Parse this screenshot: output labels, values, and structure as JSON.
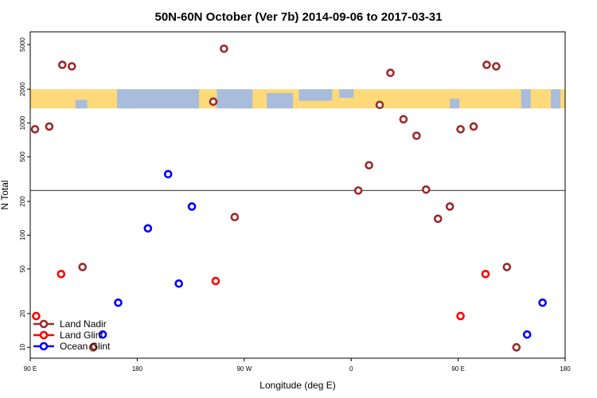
{
  "chart_data": {
    "type": "scatter",
    "title": "50N-60N October (Ver 7b)   2014-09-06 to 2017-03-31",
    "xlabel": "Longitude (deg E)",
    "ylabel": "N Total",
    "xlim": [
      90,
      540
    ],
    "ylim_log": [
      8,
      6500
    ],
    "scale_y": "log",
    "x_ticks": [
      {
        "value": 90,
        "label": "90 E"
      },
      {
        "value": 180,
        "label": "180"
      },
      {
        "value": 270,
        "label": "90 W"
      },
      {
        "value": 360,
        "label": "0"
      },
      {
        "value": 450,
        "label": "90 E"
      },
      {
        "value": 540,
        "label": "180"
      }
    ],
    "y_ticks": [
      {
        "value": 10,
        "label": "10"
      },
      {
        "value": 20,
        "label": "20"
      },
      {
        "value": 50,
        "label": "50"
      },
      {
        "value": 100,
        "label": "100"
      },
      {
        "value": 200,
        "label": "200"
      },
      {
        "value": 500,
        "label": "500"
      },
      {
        "value": 1000,
        "label": "1000"
      },
      {
        "value": 2000,
        "label": "2000"
      },
      {
        "value": 5000,
        "label": "5000"
      }
    ],
    "reference_line_y": 250,
    "map_band": {
      "y_low": 1350,
      "y_high": 2000,
      "ocean_color": "#a8bcdc",
      "land_color": "#fdd97a"
    },
    "legend_position": "bottom-left",
    "series": [
      {
        "name": "Land Nadir",
        "color": "#9b2b2b",
        "points": [
          [
            94,
            880
          ],
          [
            106,
            930
          ],
          [
            117,
            3300
          ],
          [
            125,
            3200
          ],
          [
            134,
            52
          ],
          [
            143,
            10
          ],
          [
            244,
            1550
          ],
          [
            253,
            4600
          ],
          [
            262,
            145
          ],
          [
            366,
            250
          ],
          [
            375,
            420
          ],
          [
            384,
            1450
          ],
          [
            393,
            2800
          ],
          [
            404,
            1080
          ],
          [
            415,
            770
          ],
          [
            423,
            255
          ],
          [
            433,
            140
          ],
          [
            443,
            180
          ],
          [
            452,
            880
          ],
          [
            463,
            930
          ],
          [
            474,
            3300
          ],
          [
            482,
            3200
          ],
          [
            491,
            52
          ],
          [
            499,
            10
          ]
        ]
      },
      {
        "name": "Land Glint",
        "color": "#ff0000",
        "points": [
          [
            95,
            19
          ],
          [
            116,
            45
          ],
          [
            246,
            39
          ],
          [
            452,
            19
          ],
          [
            473,
            45
          ]
        ]
      },
      {
        "name": "Ocean Glint",
        "color": "#0000ff",
        "points": [
          [
            151,
            13
          ],
          [
            164,
            25
          ],
          [
            189,
            115
          ],
          [
            206,
            350
          ],
          [
            215,
            37
          ],
          [
            226,
            180
          ],
          [
            508,
            13
          ],
          [
            521,
            25
          ]
        ]
      }
    ]
  }
}
